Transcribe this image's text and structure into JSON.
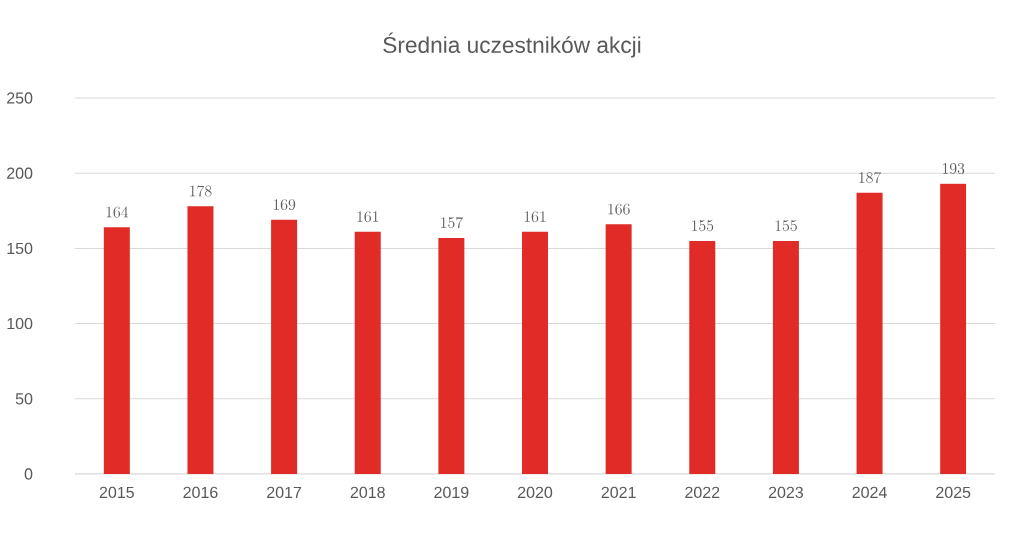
{
  "chart_data": {
    "type": "bar",
    "title": "Średnia uczestników akcji",
    "categories": [
      "2015",
      "2016",
      "2017",
      "2018",
      "2019",
      "2020",
      "2021",
      "2022",
      "2023",
      "2024",
      "2025"
    ],
    "values": [
      164,
      178,
      169,
      161,
      157,
      161,
      166,
      155,
      155,
      187,
      193
    ],
    "color": "#e02b26",
    "ylim": [
      0,
      250
    ],
    "yticks": [
      0,
      50,
      100,
      150,
      200,
      250
    ],
    "grid": "y",
    "data_labels": true
  }
}
